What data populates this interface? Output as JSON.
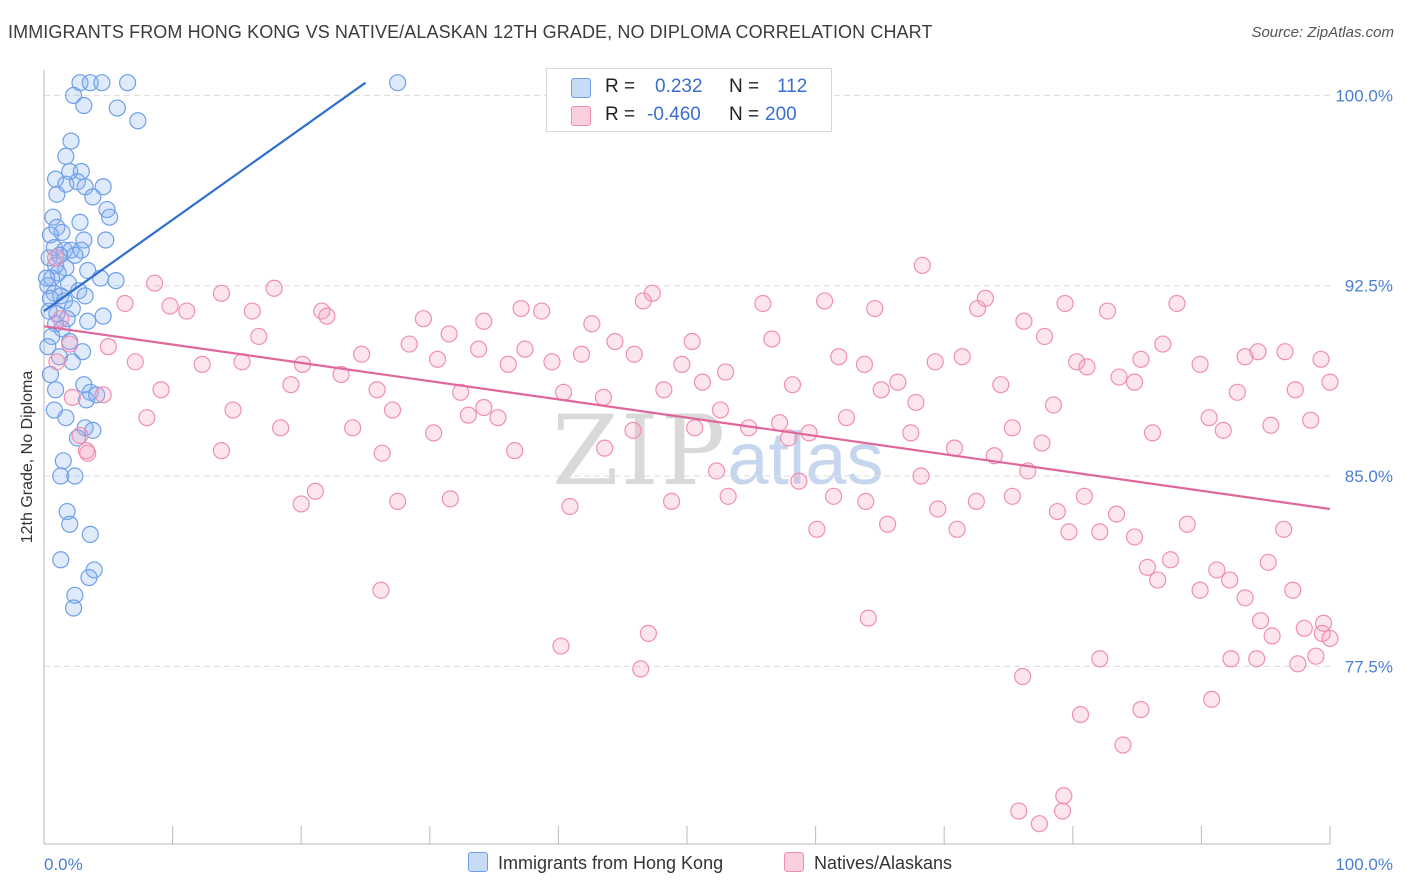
{
  "title": "IMMIGRANTS FROM HONG KONG VS NATIVE/ALASKAN 12TH GRADE, NO DIPLOMA CORRELATION CHART",
  "source": "Source: ZipAtlas.com",
  "watermark": {
    "zip": "ZIP",
    "atlas": "atlas"
  },
  "legend": {
    "rows": [
      {
        "r_label": "R =",
        "r_value": "0.232",
        "n_label": "N =",
        "n_value": "112",
        "color": "#6f9fe8"
      },
      {
        "r_label": "R =",
        "r_value": "-0.460",
        "n_label": "N =",
        "n_value": "200",
        "color": "#f08fb0"
      }
    ]
  },
  "chart_data": {
    "type": "scatter",
    "title": "IMMIGRANTS FROM HONG KONG VS NATIVE/ALASKAN 12TH GRADE, NO DIPLOMA CORRELATION CHART",
    "xlabel": "",
    "ylabel": "12th Grade, No Diploma",
    "xlim": [
      0,
      100
    ],
    "ylim": [
      70.5,
      101.0
    ],
    "x_tick_labels": [
      "0.0%",
      "100.0%"
    ],
    "y_ticks": [
      100.0,
      92.5,
      85.0,
      77.5
    ],
    "y_tick_labels": [
      "100.0%",
      "92.5%",
      "85.0%",
      "77.5%"
    ],
    "grid": true,
    "series": [
      {
        "name": "Immigrants from Hong Kong",
        "color": "#6f9fe8",
        "trend": {
          "x": [
            0.0,
            25.0
          ],
          "y": [
            91.5,
            100.5
          ]
        },
        "points": [
          [
            2.8,
            100.5
          ],
          [
            3.6,
            100.5
          ],
          [
            4.5,
            100.5
          ],
          [
            6.5,
            100.5
          ],
          [
            2.3,
            100.0
          ],
          [
            3.1,
            99.6
          ],
          [
            5.7,
            99.5
          ],
          [
            7.3,
            99.0
          ],
          [
            2.1,
            98.2
          ],
          [
            1.7,
            97.6
          ],
          [
            2.0,
            97.0
          ],
          [
            2.9,
            97.0
          ],
          [
            0.9,
            96.7
          ],
          [
            2.6,
            96.6
          ],
          [
            1.7,
            96.5
          ],
          [
            3.2,
            96.4
          ],
          [
            4.6,
            96.4
          ],
          [
            1.0,
            96.1
          ],
          [
            3.8,
            96.0
          ],
          [
            4.9,
            95.5
          ],
          [
            5.1,
            95.2
          ],
          [
            0.7,
            95.2
          ],
          [
            2.8,
            95.0
          ],
          [
            1.0,
            94.8
          ],
          [
            1.4,
            94.6
          ],
          [
            0.5,
            94.5
          ],
          [
            3.1,
            94.3
          ],
          [
            4.8,
            94.3
          ],
          [
            0.8,
            94.0
          ],
          [
            1.6,
            93.9
          ],
          [
            2.1,
            93.9
          ],
          [
            2.9,
            93.9
          ],
          [
            1.2,
            93.7
          ],
          [
            0.4,
            93.6
          ],
          [
            2.4,
            93.7
          ],
          [
            0.9,
            93.3
          ],
          [
            1.7,
            93.2
          ],
          [
            3.4,
            93.1
          ],
          [
            1.1,
            93.0
          ],
          [
            4.4,
            92.8
          ],
          [
            5.6,
            92.7
          ],
          [
            0.6,
            92.8
          ],
          [
            1.9,
            92.6
          ],
          [
            0.3,
            92.5
          ],
          [
            2.7,
            92.3
          ],
          [
            0.8,
            92.2
          ],
          [
            1.3,
            92.1
          ],
          [
            0.5,
            92.0
          ],
          [
            3.2,
            92.1
          ],
          [
            1.6,
            91.9
          ],
          [
            2.2,
            91.6
          ],
          [
            1.0,
            91.4
          ],
          [
            1.8,
            91.2
          ],
          [
            0.9,
            91.0
          ],
          [
            4.6,
            91.3
          ],
          [
            3.4,
            91.1
          ],
          [
            1.4,
            90.8
          ],
          [
            0.6,
            90.5
          ],
          [
            2.0,
            90.3
          ],
          [
            0.3,
            90.1
          ],
          [
            3.0,
            89.9
          ],
          [
            1.2,
            89.7
          ],
          [
            2.2,
            89.5
          ],
          [
            0.9,
            88.4
          ],
          [
            3.1,
            88.6
          ],
          [
            3.6,
            88.3
          ],
          [
            3.3,
            88.0
          ],
          [
            4.1,
            88.2
          ],
          [
            0.8,
            87.6
          ],
          [
            1.7,
            87.3
          ],
          [
            3.2,
            86.9
          ],
          [
            3.8,
            86.8
          ],
          [
            2.6,
            86.5
          ],
          [
            1.5,
            85.6
          ],
          [
            1.3,
            85.0
          ],
          [
            2.4,
            85.0
          ],
          [
            1.8,
            83.6
          ],
          [
            2.0,
            83.1
          ],
          [
            3.6,
            82.7
          ],
          [
            1.3,
            81.7
          ],
          [
            3.9,
            81.3
          ],
          [
            3.5,
            81.0
          ],
          [
            2.4,
            80.3
          ],
          [
            2.3,
            79.8
          ],
          [
            27.5,
            100.5
          ],
          [
            0.2,
            92.8
          ],
          [
            0.4,
            91.5
          ],
          [
            0.5,
            89.0
          ]
        ]
      },
      {
        "name": "Natives/Alaskans",
        "color": "#f08fb0",
        "trend": {
          "x": [
            0.0,
            100.0
          ],
          "y": [
            90.9,
            83.7
          ]
        },
        "points": [
          [
            0.9,
            93.6
          ],
          [
            1.3,
            91.2
          ],
          [
            2.0,
            90.2
          ],
          [
            1.0,
            89.5
          ],
          [
            2.2,
            88.1
          ],
          [
            2.8,
            86.6
          ],
          [
            3.4,
            85.9
          ],
          [
            5.0,
            90.1
          ],
          [
            4.6,
            88.2
          ],
          [
            6.3,
            91.8
          ],
          [
            7.1,
            89.5
          ],
          [
            8.0,
            87.3
          ],
          [
            8.6,
            92.6
          ],
          [
            9.1,
            88.4
          ],
          [
            9.8,
            91.7
          ],
          [
            11.1,
            91.5
          ],
          [
            12.3,
            89.4
          ],
          [
            13.8,
            92.2
          ],
          [
            14.7,
            87.6
          ],
          [
            15.4,
            89.5
          ],
          [
            16.2,
            91.5
          ],
          [
            16.7,
            90.5
          ],
          [
            17.9,
            92.4
          ],
          [
            18.4,
            86.9
          ],
          [
            19.2,
            88.6
          ],
          [
            20.1,
            89.4
          ],
          [
            21.6,
            91.5
          ],
          [
            22.0,
            91.3
          ],
          [
            23.1,
            89.0
          ],
          [
            24.0,
            86.9
          ],
          [
            24.7,
            89.8
          ],
          [
            25.9,
            88.4
          ],
          [
            26.3,
            85.9
          ],
          [
            27.1,
            87.6
          ],
          [
            28.4,
            90.2
          ],
          [
            29.5,
            91.2
          ],
          [
            30.6,
            89.6
          ],
          [
            31.5,
            90.6
          ],
          [
            32.4,
            88.3
          ],
          [
            33.0,
            87.4
          ],
          [
            33.8,
            90.0
          ],
          [
            34.2,
            91.1
          ],
          [
            35.3,
            87.3
          ],
          [
            36.1,
            89.4
          ],
          [
            37.1,
            91.6
          ],
          [
            37.4,
            90.0
          ],
          [
            38.7,
            91.5
          ],
          [
            39.5,
            89.5
          ],
          [
            40.4,
            88.3
          ],
          [
            41.8,
            89.8
          ],
          [
            42.6,
            91.0
          ],
          [
            43.5,
            88.1
          ],
          [
            44.4,
            90.3
          ],
          [
            45.9,
            89.8
          ],
          [
            46.6,
            91.9
          ],
          [
            47.3,
            92.2
          ],
          [
            48.2,
            88.4
          ],
          [
            49.6,
            89.4
          ],
          [
            50.4,
            90.3
          ],
          [
            51.2,
            88.7
          ],
          [
            52.6,
            87.6
          ],
          [
            53.0,
            89.1
          ],
          [
            54.8,
            86.9
          ],
          [
            55.9,
            91.8
          ],
          [
            56.6,
            90.4
          ],
          [
            57.2,
            87.1
          ],
          [
            58.2,
            88.6
          ],
          [
            59.5,
            86.7
          ],
          [
            60.7,
            91.9
          ],
          [
            61.8,
            89.7
          ],
          [
            62.4,
            87.3
          ],
          [
            63.8,
            89.4
          ],
          [
            64.6,
            91.6
          ],
          [
            65.1,
            88.4
          ],
          [
            66.4,
            88.7
          ],
          [
            67.8,
            87.9
          ],
          [
            68.3,
            93.3
          ],
          [
            69.3,
            89.5
          ],
          [
            70.8,
            86.1
          ],
          [
            71.4,
            89.7
          ],
          [
            72.6,
            91.6
          ],
          [
            73.2,
            92.0
          ],
          [
            74.4,
            88.6
          ],
          [
            75.3,
            86.9
          ],
          [
            76.2,
            91.1
          ],
          [
            77.8,
            90.5
          ],
          [
            78.5,
            87.8
          ],
          [
            79.4,
            91.8
          ],
          [
            80.3,
            89.5
          ],
          [
            81.1,
            89.3
          ],
          [
            82.7,
            91.5
          ],
          [
            83.6,
            88.9
          ],
          [
            84.8,
            88.7
          ],
          [
            85.3,
            89.6
          ],
          [
            86.2,
            86.7
          ],
          [
            87.0,
            90.2
          ],
          [
            88.1,
            91.8
          ],
          [
            89.9,
            89.4
          ],
          [
            90.6,
            87.3
          ],
          [
            91.7,
            86.8
          ],
          [
            92.8,
            88.3
          ],
          [
            93.4,
            89.7
          ],
          [
            94.4,
            89.9
          ],
          [
            95.4,
            87.0
          ],
          [
            96.5,
            89.9
          ],
          [
            97.3,
            88.4
          ],
          [
            98.5,
            87.2
          ],
          [
            99.3,
            89.6
          ],
          [
            100.0,
            88.7
          ],
          [
            3.3,
            86.0
          ],
          [
            13.8,
            86.0
          ],
          [
            20.0,
            83.9
          ],
          [
            21.1,
            84.4
          ],
          [
            27.5,
            84.0
          ],
          [
            30.3,
            86.7
          ],
          [
            31.6,
            84.1
          ],
          [
            34.2,
            87.7
          ],
          [
            36.6,
            86.0
          ],
          [
            40.9,
            83.8
          ],
          [
            43.6,
            86.1
          ],
          [
            45.8,
            86.8
          ],
          [
            48.8,
            84.0
          ],
          [
            50.6,
            86.9
          ],
          [
            52.3,
            85.2
          ],
          [
            53.2,
            84.2
          ],
          [
            57.9,
            86.5
          ],
          [
            58.7,
            84.8
          ],
          [
            60.1,
            82.9
          ],
          [
            61.4,
            84.2
          ],
          [
            63.9,
            84.0
          ],
          [
            65.6,
            83.1
          ],
          [
            67.4,
            86.7
          ],
          [
            68.2,
            85.0
          ],
          [
            69.5,
            83.7
          ],
          [
            71.0,
            82.9
          ],
          [
            72.5,
            84.0
          ],
          [
            73.9,
            85.8
          ],
          [
            75.3,
            84.2
          ],
          [
            76.5,
            85.2
          ],
          [
            77.6,
            86.3
          ],
          [
            78.8,
            83.6
          ],
          [
            79.7,
            82.8
          ],
          [
            80.9,
            84.2
          ],
          [
            82.1,
            82.8
          ],
          [
            83.4,
            83.5
          ],
          [
            84.8,
            82.6
          ],
          [
            85.8,
            81.4
          ],
          [
            86.6,
            80.9
          ],
          [
            87.6,
            81.7
          ],
          [
            88.9,
            83.1
          ],
          [
            89.9,
            80.5
          ],
          [
            91.2,
            81.3
          ],
          [
            92.2,
            80.9
          ],
          [
            93.4,
            80.2
          ],
          [
            94.6,
            79.3
          ],
          [
            95.2,
            81.6
          ],
          [
            96.4,
            82.9
          ],
          [
            97.1,
            80.5
          ],
          [
            98.0,
            79.0
          ],
          [
            99.4,
            78.8
          ],
          [
            100.0,
            78.6
          ],
          [
            26.2,
            80.5
          ],
          [
            40.2,
            78.3
          ],
          [
            47.0,
            78.8
          ],
          [
            46.4,
            77.4
          ],
          [
            64.1,
            79.4
          ],
          [
            76.1,
            77.1
          ],
          [
            82.1,
            77.8
          ],
          [
            85.3,
            75.8
          ],
          [
            90.8,
            76.2
          ],
          [
            92.3,
            77.8
          ],
          [
            94.3,
            77.8
          ],
          [
            95.5,
            78.7
          ],
          [
            97.5,
            77.6
          ],
          [
            98.9,
            77.9
          ],
          [
            99.5,
            79.2
          ],
          [
            75.8,
            71.8
          ],
          [
            77.4,
            71.3
          ],
          [
            79.2,
            71.8
          ],
          [
            79.3,
            72.4
          ],
          [
            80.6,
            75.6
          ],
          [
            83.9,
            74.4
          ]
        ]
      }
    ]
  },
  "bottom_legend": [
    {
      "label": "Immigrants from Hong Kong",
      "color": "#6f9fe8"
    },
    {
      "label": "Natives/Alaskans",
      "color": "#f08fb0"
    }
  ]
}
